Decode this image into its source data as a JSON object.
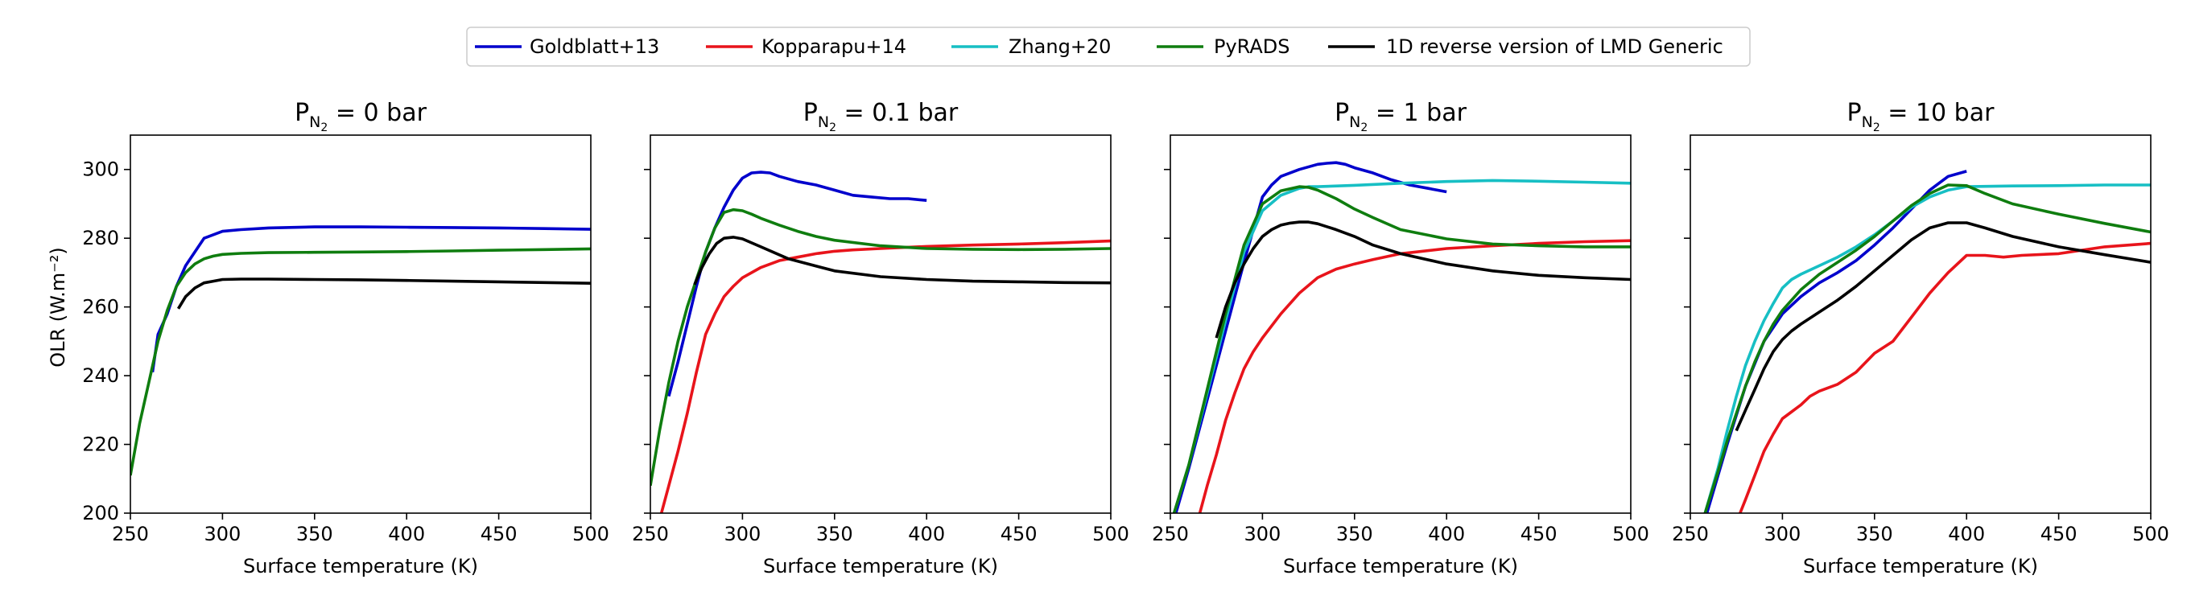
{
  "legend": [
    {
      "label": "Goldblatt+13",
      "color": "#0000cc"
    },
    {
      "label": "Kopparapu+14",
      "color": "#e8141b"
    },
    {
      "label": "Zhang+20",
      "color": "#17bfc4"
    },
    {
      "label": "PyRADS",
      "color": "#0f7d0f"
    },
    {
      "label": "1D reverse version of LMD Generic",
      "color": "#000000"
    }
  ],
  "ylabel": "OLR (W.m⁻²)",
  "xlabel": "Surface temperature (K)",
  "xticks": [
    250,
    300,
    350,
    400,
    450,
    500
  ],
  "yticks": [
    200,
    220,
    240,
    260,
    280,
    300
  ],
  "chart_data": [
    {
      "type": "line",
      "title_pre": "P",
      "title_sub": "N",
      "title_subsub": "2",
      "title_post": " = 0 bar",
      "xlabel": "Surface temperature (K)",
      "ylabel": "OLR (W.m⁻²)",
      "xlim": [
        250,
        500
      ],
      "ylim": [
        200,
        310
      ],
      "grid": false,
      "series": [
        {
          "name": "Goldblatt+13",
          "color": "#0000cc",
          "x": [
            262,
            265,
            270,
            275,
            280,
            290,
            300,
            310,
            325,
            350,
            375,
            400,
            425,
            450,
            475,
            500
          ],
          "y": [
            241,
            252,
            258,
            266,
            272,
            280,
            282,
            282.5,
            283,
            283.3,
            283.3,
            283.2,
            283.1,
            283,
            282.8,
            282.6
          ]
        },
        {
          "name": "PyRADS",
          "color": "#0f7d0f",
          "x": [
            250,
            255,
            260,
            265,
            270,
            275,
            280,
            285,
            290,
            295,
            300,
            310,
            325,
            350,
            375,
            400,
            425,
            450,
            475,
            500
          ],
          "y": [
            211,
            226,
            238,
            250,
            259,
            266,
            270,
            272.5,
            274,
            274.8,
            275.3,
            275.6,
            275.8,
            275.9,
            276,
            276.1,
            276.3,
            276.5,
            276.7,
            276.9
          ]
        },
        {
          "name": "1D reverse version of LMD Generic",
          "color": "#000000",
          "x": [
            276,
            280,
            285,
            290,
            295,
            300,
            310,
            325,
            350,
            375,
            400,
            425,
            450,
            475,
            500
          ],
          "y": [
            259.5,
            263,
            265.5,
            267,
            267.5,
            268,
            268.1,
            268.1,
            268,
            267.9,
            267.7,
            267.5,
            267.3,
            267.1,
            266.9
          ]
        }
      ]
    },
    {
      "type": "line",
      "title_pre": "P",
      "title_sub": "N",
      "title_subsub": "2",
      "title_post": " = 0.1 bar",
      "xlabel": "Surface temperature (K)",
      "ylabel": "",
      "xlim": [
        250,
        500
      ],
      "ylim": [
        200,
        310
      ],
      "grid": false,
      "series": [
        {
          "name": "Goldblatt+13",
          "color": "#0000cc",
          "x": [
            260,
            265,
            270,
            275,
            280,
            285,
            290,
            295,
            300,
            305,
            310,
            315,
            320,
            330,
            340,
            350,
            360,
            370,
            380,
            390,
            400
          ],
          "y": [
            234,
            244,
            255,
            266,
            276,
            283,
            289,
            294,
            297.5,
            299,
            299.2,
            299,
            298,
            296.5,
            295.5,
            294,
            292.5,
            292,
            291.5,
            291.5,
            291
          ]
        },
        {
          "name": "Kopparapu+14",
          "color": "#e8141b",
          "x": [
            256,
            260,
            265,
            270,
            275,
            280,
            285,
            290,
            295,
            300,
            310,
            320,
            330,
            340,
            350,
            360,
            375,
            400,
            425,
            450,
            475,
            500
          ],
          "y": [
            200,
            208,
            218,
            229,
            241,
            252,
            258,
            263,
            266,
            268.5,
            271.5,
            273.5,
            274.5,
            275.5,
            276.2,
            276.6,
            277,
            277.6,
            278,
            278.3,
            278.7,
            279.2
          ]
        },
        {
          "name": "PyRADS",
          "color": "#0f7d0f",
          "x": [
            250,
            255,
            260,
            265,
            270,
            275,
            280,
            285,
            290,
            295,
            300,
            305,
            310,
            320,
            330,
            340,
            350,
            375,
            400,
            425,
            450,
            475,
            500
          ],
          "y": [
            208,
            224,
            238,
            250,
            260,
            268,
            276,
            283,
            287.5,
            288.3,
            288,
            287,
            285.8,
            283.8,
            282,
            280.5,
            279.4,
            277.8,
            277,
            276.8,
            276.7,
            276.8,
            277
          ]
        },
        {
          "name": "1D reverse version of LMD Generic",
          "color": "#000000",
          "x": [
            274,
            278,
            282,
            286,
            290,
            295,
            300,
            310,
            325,
            350,
            375,
            400,
            425,
            450,
            475,
            500
          ],
          "y": [
            266.5,
            271.5,
            275.5,
            278.5,
            280,
            280.3,
            279.8,
            277.5,
            274,
            270.5,
            268.8,
            268,
            267.5,
            267.3,
            267.1,
            267
          ]
        }
      ]
    },
    {
      "type": "line",
      "title_pre": "P",
      "title_sub": "N",
      "title_subsub": "2",
      "title_post": " = 1 bar",
      "xlabel": "Surface temperature (K)",
      "ylabel": "",
      "xlim": [
        250,
        500
      ],
      "ylim": [
        200,
        310
      ],
      "grid": false,
      "series": [
        {
          "name": "Goldblatt+13",
          "color": "#0000cc",
          "x": [
            253,
            260,
            270,
            280,
            290,
            300,
            305,
            310,
            320,
            330,
            335,
            340,
            345,
            350,
            360,
            370,
            380,
            390,
            400
          ],
          "y": [
            200,
            213,
            233,
            253,
            273,
            292,
            295.5,
            298,
            300,
            301.5,
            301.8,
            302,
            301.5,
            300.5,
            299,
            297,
            295.5,
            294.5,
            293.5
          ]
        },
        {
          "name": "Kopparapu+14",
          "color": "#e8141b",
          "x": [
            266,
            270,
            275,
            280,
            285,
            290,
            295,
            300,
            310,
            320,
            330,
            340,
            350,
            360,
            375,
            400,
            425,
            450,
            475,
            500
          ],
          "y": [
            200,
            208,
            217,
            227,
            235,
            242,
            247,
            251,
            258,
            264,
            268.5,
            271,
            272.5,
            273.8,
            275.5,
            277,
            277.8,
            278.5,
            279,
            279.3
          ]
        },
        {
          "name": "Zhang+20",
          "color": "#17bfc4",
          "x": [
            252,
            260,
            270,
            280,
            290,
            300,
            310,
            320,
            325,
            330,
            350,
            375,
            400,
            425,
            450,
            475,
            500
          ],
          "y": [
            200,
            214,
            235,
            256,
            276,
            288,
            292.5,
            294.5,
            295,
            295,
            295.4,
            296,
            296.5,
            296.8,
            296.6,
            296.3,
            296
          ]
        },
        {
          "name": "PyRADS",
          "color": "#0f7d0f",
          "x": [
            252,
            260,
            270,
            280,
            290,
            300,
            310,
            320,
            325,
            330,
            340,
            350,
            360,
            375,
            400,
            425,
            450,
            475,
            500
          ],
          "y": [
            200,
            214,
            236,
            258,
            278,
            290,
            293.8,
            295,
            294.8,
            294,
            291.5,
            288.5,
            286,
            282.5,
            279.8,
            278.3,
            277.8,
            277.5,
            277.5
          ]
        },
        {
          "name": "1D reverse version of LMD Generic",
          "color": "#000000",
          "x": [
            275,
            280,
            285,
            290,
            295,
            300,
            305,
            310,
            315,
            320,
            325,
            330,
            340,
            350,
            360,
            375,
            400,
            425,
            450,
            475,
            500
          ],
          "y": [
            251,
            260,
            267,
            272.5,
            277,
            280.5,
            282.5,
            283.8,
            284.4,
            284.7,
            284.7,
            284.2,
            282.5,
            280.5,
            278,
            275.5,
            272.5,
            270.5,
            269.2,
            268.5,
            268
          ]
        }
      ]
    },
    {
      "type": "line",
      "title_pre": "P",
      "title_sub": "N",
      "title_subsub": "2",
      "title_post": " = 10 bar",
      "xlabel": "Surface temperature (K)",
      "ylabel": "",
      "xlim": [
        250,
        500
      ],
      "ylim": [
        200,
        310
      ],
      "grid": false,
      "series": [
        {
          "name": "Goldblatt+13",
          "color": "#0000cc",
          "x": [
            259,
            270,
            280,
            290,
            300,
            310,
            320,
            330,
            340,
            350,
            360,
            370,
            380,
            390,
            400
          ],
          "y": [
            200,
            220,
            237,
            250,
            258,
            263,
            267,
            270,
            273.5,
            278,
            283,
            288.5,
            294,
            298,
            299.5
          ]
        },
        {
          "name": "Kopparapu+14",
          "color": "#e8141b",
          "x": [
            277,
            280,
            285,
            290,
            295,
            300,
            305,
            310,
            315,
            320,
            330,
            340,
            350,
            360,
            370,
            380,
            390,
            400,
            410,
            420,
            430,
            450,
            475,
            500
          ],
          "y": [
            200,
            204,
            211,
            218,
            223,
            227.5,
            229.5,
            231.5,
            234,
            235.5,
            237.5,
            241,
            246.5,
            250,
            257,
            264,
            270,
            275,
            275,
            274.5,
            275,
            275.5,
            277.5,
            278.5
          ]
        },
        {
          "name": "Zhang+20",
          "color": "#17bfc4",
          "x": [
            258,
            265,
            270,
            275,
            280,
            285,
            290,
            295,
            300,
            305,
            310,
            320,
            330,
            340,
            350,
            360,
            370,
            380,
            390,
            400,
            425,
            450,
            475,
            500
          ],
          "y": [
            200,
            213,
            224,
            234,
            243,
            250,
            256,
            261,
            265.5,
            268,
            269.5,
            272,
            274.5,
            277.5,
            281,
            285,
            289,
            292,
            294,
            295,
            295.2,
            295.3,
            295.5,
            295.5
          ]
        },
        {
          "name": "PyRADS",
          "color": "#0f7d0f",
          "x": [
            258,
            265,
            270,
            275,
            280,
            285,
            290,
            295,
            300,
            310,
            320,
            330,
            340,
            350,
            360,
            370,
            380,
            390,
            400,
            410,
            425,
            450,
            475,
            500
          ],
          "y": [
            200,
            212,
            221,
            229,
            237,
            244,
            250,
            255,
            259,
            265,
            269.5,
            273,
            276.5,
            280.5,
            285,
            289.5,
            293,
            295.5,
            295.3,
            293,
            290,
            287,
            284.3,
            281.8
          ]
        },
        {
          "name": "1D reverse version of LMD Generic",
          "color": "#000000",
          "x": [
            275,
            280,
            285,
            290,
            295,
            300,
            305,
            310,
            320,
            330,
            340,
            350,
            360,
            370,
            380,
            390,
            400,
            410,
            425,
            450,
            475,
            500
          ],
          "y": [
            224,
            230,
            236,
            242,
            247,
            250.5,
            253,
            255,
            258.5,
            262,
            266,
            270.5,
            275,
            279.5,
            283,
            284.5,
            284.5,
            283,
            280.5,
            277.5,
            275.2,
            273
          ]
        }
      ]
    }
  ]
}
